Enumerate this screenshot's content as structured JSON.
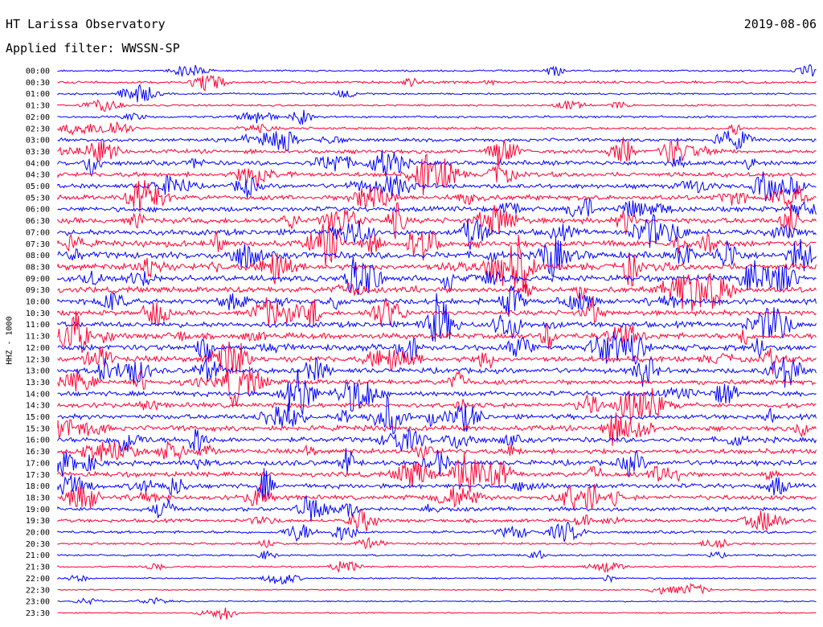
{
  "header": {
    "station": "HT Larissa Observatory",
    "filter": "Applied filter: WWSSN-SP",
    "date": "2019-08-06"
  },
  "chart_data": {
    "type": "line",
    "title": "HT Larissa Observatory",
    "subtitle": "Applied filter: WWSSN-SP",
    "ylabel": "HHZ - 1000",
    "date": "2019-08-06",
    "rows": [
      "00:00",
      "00:30",
      "01:00",
      "01:30",
      "02:00",
      "02:30",
      "03:00",
      "03:30",
      "04:00",
      "04:30",
      "05:00",
      "05:30",
      "06:00",
      "06:30",
      "07:00",
      "07:30",
      "08:00",
      "08:30",
      "09:00",
      "09:30",
      "10:00",
      "10:30",
      "11:00",
      "11:30",
      "12:00",
      "12:30",
      "13:00",
      "13:30",
      "14:00",
      "14:30",
      "15:00",
      "15:30",
      "16:00",
      "16:30",
      "17:00",
      "17:30",
      "18:00",
      "18:30",
      "19:00",
      "19:30",
      "20:00",
      "20:30",
      "21:00",
      "21:30",
      "22:00",
      "22:30",
      "23:00",
      "23:30"
    ],
    "colors": [
      "#0000ff",
      "#ff0033"
    ],
    "activity": [
      0.6,
      0.8,
      0.6,
      0.6,
      0.7,
      0.8,
      1.1,
      1.3,
      1.5,
      1.5,
      1.5,
      1.6,
      1.6,
      1.8,
      1.9,
      2.0,
      2.2,
      2.2,
      1.9,
      1.8,
      1.8,
      1.6,
      1.8,
      1.9,
      2.0,
      1.9,
      1.7,
      1.6,
      1.6,
      1.6,
      1.6,
      1.7,
      1.7,
      1.6,
      1.7,
      1.6,
      1.5,
      1.5,
      1.3,
      1.1,
      0.9,
      0.7,
      0.6,
      0.5,
      0.5,
      0.4,
      0.4,
      0.4
    ],
    "grid": false
  }
}
